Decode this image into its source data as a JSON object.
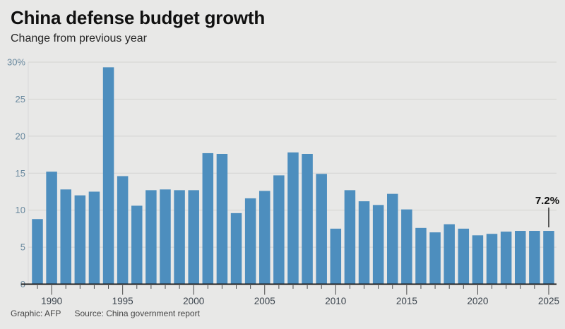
{
  "header": {
    "title": "China defense budget growth",
    "subtitle": "Change from previous year"
  },
  "chart_data": {
    "type": "bar",
    "title": "China defense budget growth",
    "subtitle": "Change from previous year",
    "unit": "%",
    "categories": [
      1989,
      1990,
      1991,
      1992,
      1993,
      1994,
      1995,
      1996,
      1997,
      1998,
      1999,
      2000,
      2001,
      2002,
      2003,
      2004,
      2005,
      2006,
      2007,
      2008,
      2009,
      2010,
      2011,
      2012,
      2013,
      2014,
      2015,
      2016,
      2017,
      2018,
      2019,
      2020,
      2021,
      2022,
      2023,
      2024,
      2025
    ],
    "values": [
      8.8,
      15.2,
      12.8,
      12.0,
      12.5,
      29.3,
      14.6,
      10.6,
      12.7,
      12.8,
      12.7,
      12.7,
      17.7,
      17.6,
      9.6,
      11.6,
      12.6,
      14.7,
      17.8,
      17.6,
      14.9,
      7.5,
      12.7,
      11.2,
      10.7,
      12.2,
      10.1,
      7.6,
      7.0,
      8.1,
      7.5,
      6.6,
      6.8,
      7.1,
      7.2,
      7.2,
      7.2
    ],
    "ylim": [
      0,
      30
    ],
    "y_ticks": [
      {
        "value": 30,
        "label": "30%"
      },
      {
        "value": 25,
        "label": "25"
      },
      {
        "value": 20,
        "label": "20"
      },
      {
        "value": 15,
        "label": "15"
      },
      {
        "value": 10,
        "label": "10"
      },
      {
        "value": 5,
        "label": "5"
      },
      {
        "value": 0,
        "label": "0"
      }
    ],
    "x_tick_labels": [
      1990,
      1995,
      2000,
      2005,
      2010,
      2015,
      2020,
      2025
    ],
    "grid": "horizontal",
    "legend": "none",
    "annotation": {
      "text": "7.2%",
      "year": 2025
    }
  },
  "colors": {
    "background": "#e8e8e7",
    "bar": "#4d8ebe",
    "gridline": "#d3d3d2",
    "axis_boundary": "#d9d9d8",
    "axis_line": "#1f1f1f",
    "tick": "#4a4a4a",
    "y_label": "#68889e",
    "x_label": "#3b444d",
    "annotation": "#111111"
  },
  "footer": {
    "credit": "Graphic: AFP",
    "source": "Source: China government report"
  }
}
